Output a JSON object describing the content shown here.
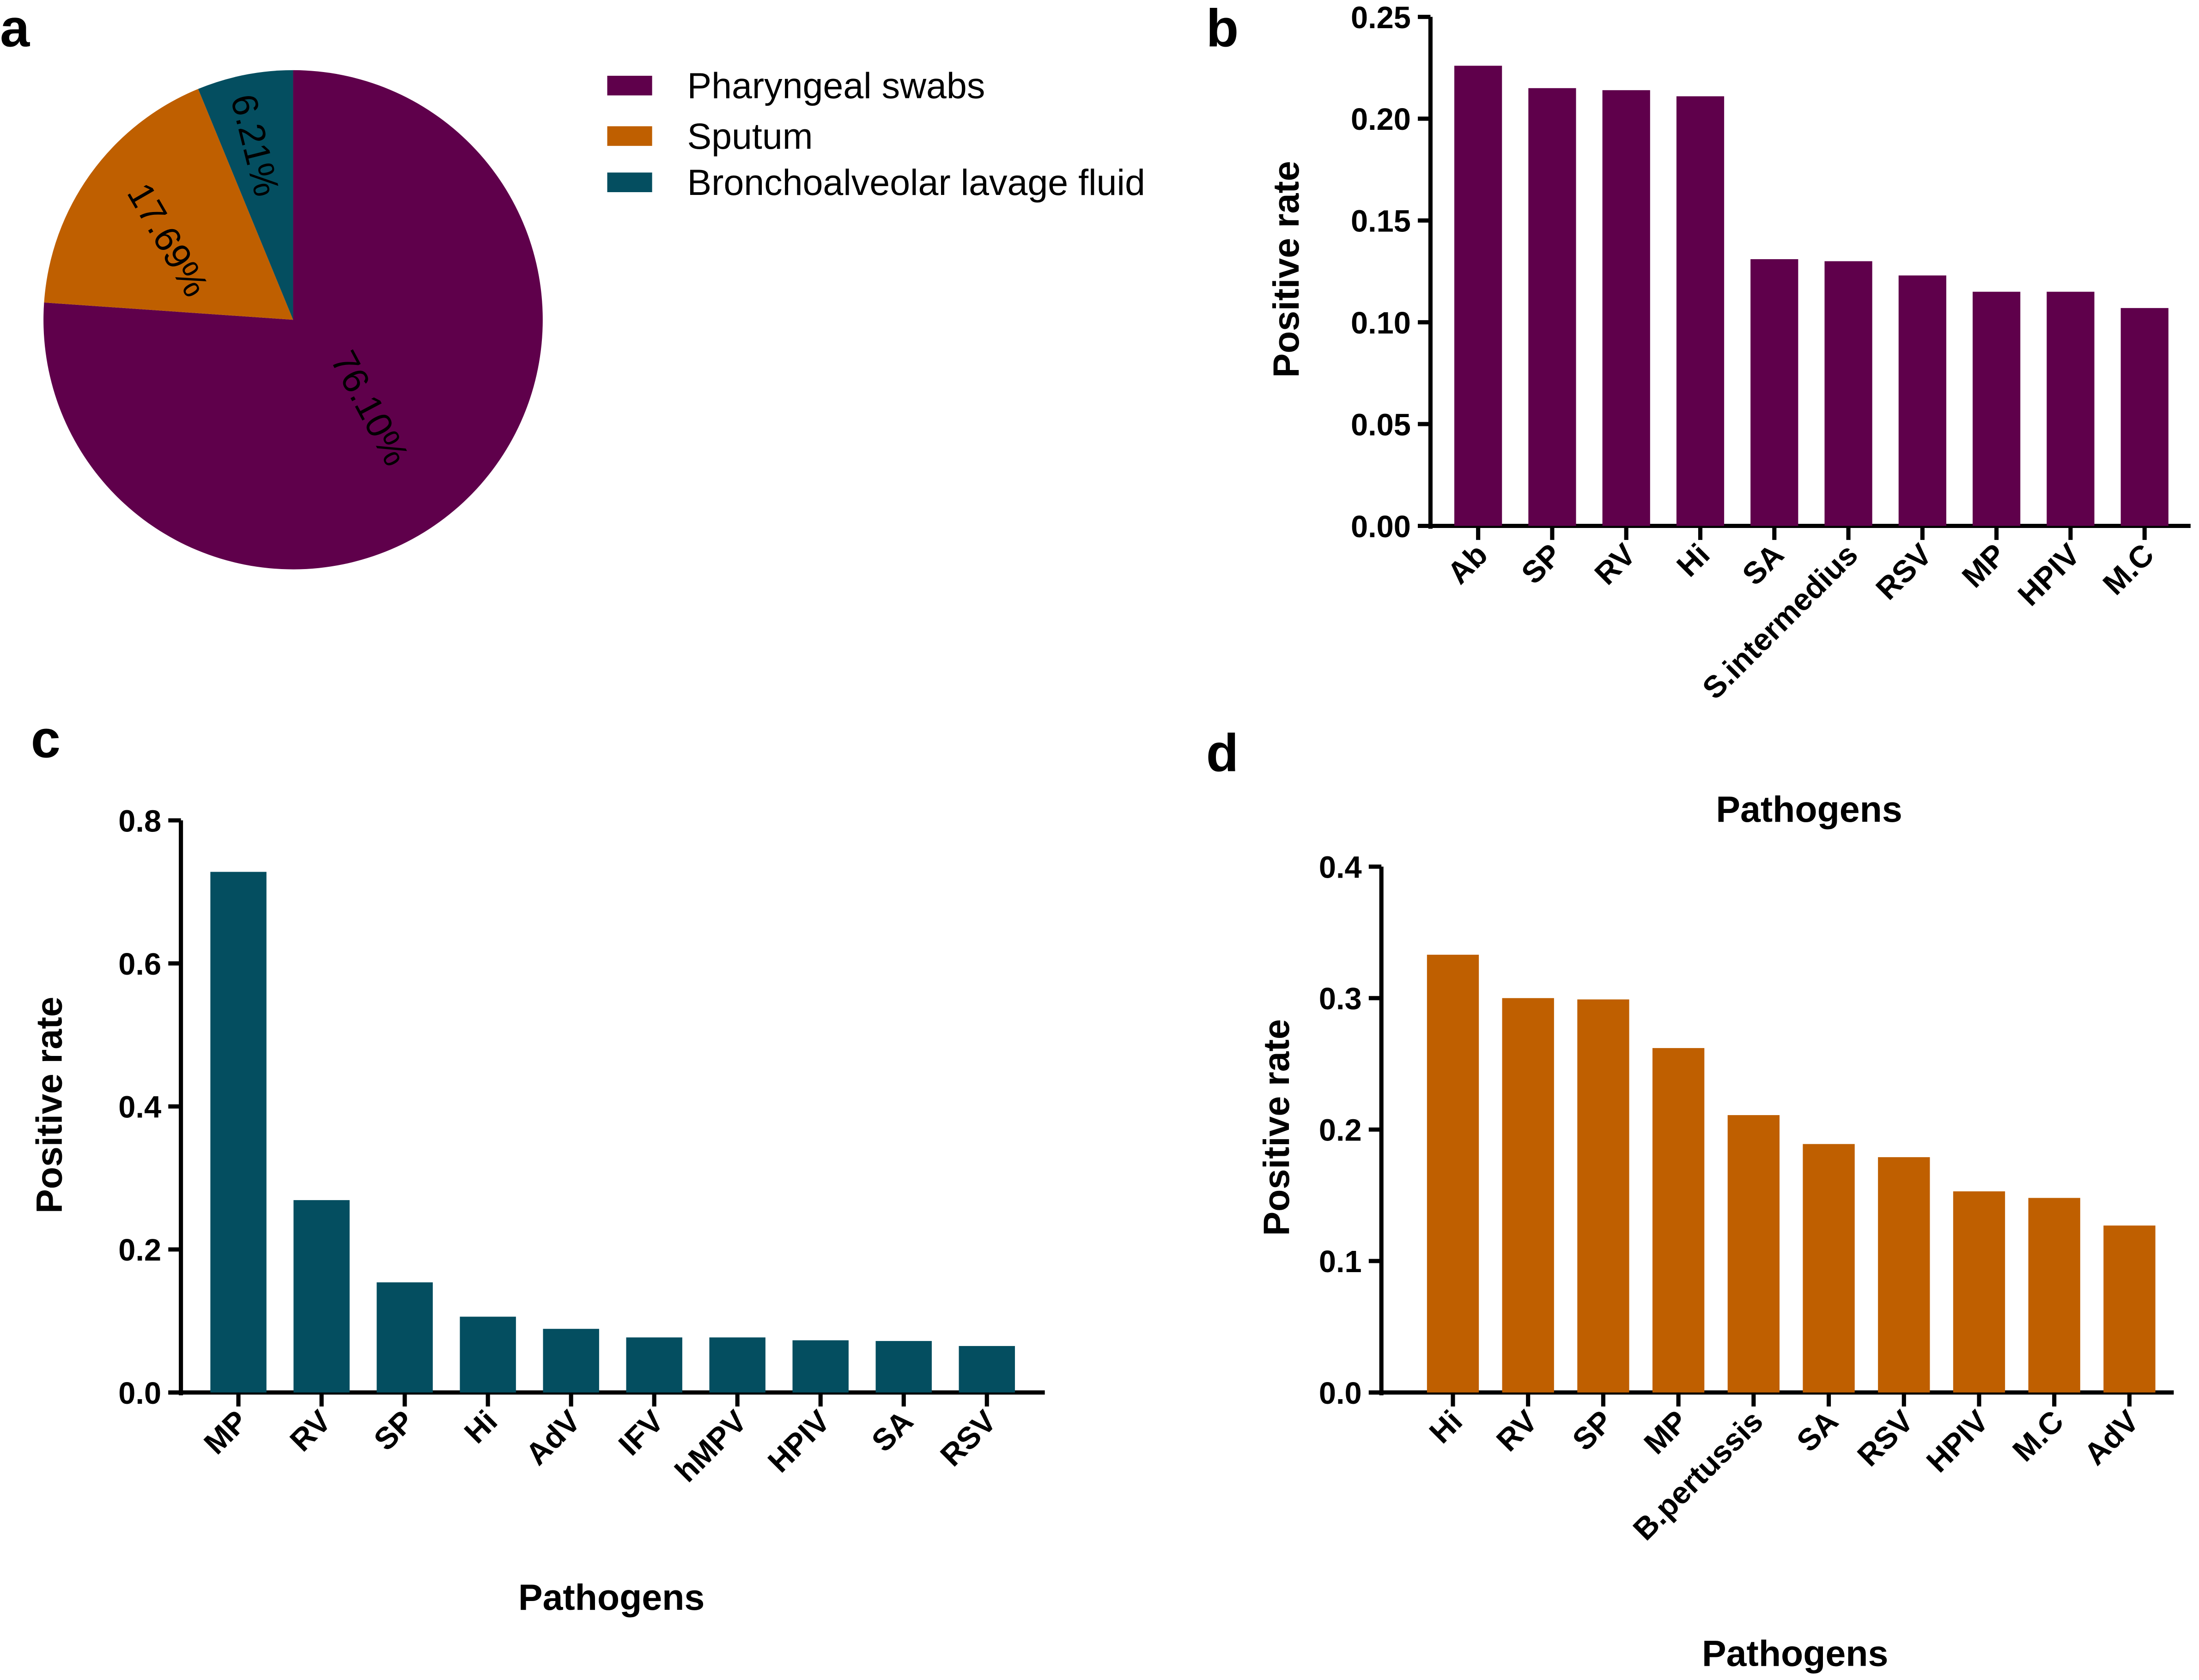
{
  "panels": {
    "a": "a",
    "b": "b",
    "c": "c",
    "d": "d"
  },
  "chart_data": [
    {
      "id": "a",
      "type": "pie",
      "labels": [
        "Pharyngeal swabs",
        "Sputum",
        "Bronchoalveolar lavage fluid"
      ],
      "values": [
        76.1,
        17.69,
        6.21
      ],
      "value_labels": [
        "76.10%",
        "17.69%",
        "6.21%"
      ],
      "colors": [
        "#5f004b",
        "#bf5f00",
        "#044e60"
      ],
      "legend": "top-right"
    },
    {
      "id": "b",
      "type": "bar",
      "categories": [
        "Ab",
        "SP",
        "RV",
        "Hi",
        "SA",
        "S.intermedius",
        "RSV",
        "MP",
        "HPIV",
        "M.C"
      ],
      "values": [
        0.226,
        0.215,
        0.214,
        0.211,
        0.131,
        0.13,
        0.123,
        0.115,
        0.115,
        0.107
      ],
      "xlabel": "Pathogens",
      "ylabel": "Positive rate",
      "ylim": [
        0,
        0.25
      ],
      "yticks": [
        "0.00",
        "0.05",
        "0.10",
        "0.15",
        "0.20",
        "0.25"
      ],
      "color": "#5f004b",
      "grid": false
    },
    {
      "id": "c",
      "type": "bar",
      "categories": [
        "MP",
        "RV",
        "SP",
        "Hi",
        "AdV",
        "IFV",
        "hMPV",
        "HPIV",
        "SA",
        "RSV"
      ],
      "values": [
        0.728,
        0.269,
        0.154,
        0.106,
        0.089,
        0.077,
        0.077,
        0.073,
        0.072,
        0.065
      ],
      "xlabel": "Pathogens",
      "ylabel": "Positive rate",
      "ylim": [
        0,
        0.8
      ],
      "yticks": [
        "0.0",
        "0.2",
        "0.4",
        "0.6",
        "0.8"
      ],
      "color": "#044e60",
      "grid": false
    },
    {
      "id": "d",
      "type": "bar",
      "categories": [
        "Hi",
        "RV",
        "SP",
        "MP",
        "B.pertussis",
        "SA",
        "RSV",
        "HPIV",
        "M.C",
        "AdV"
      ],
      "values": [
        0.333,
        0.3,
        0.299,
        0.262,
        0.211,
        0.189,
        0.179,
        0.153,
        0.148,
        0.127
      ],
      "xlabel": "Pathogens",
      "ylabel": "Positive rate",
      "ylim": [
        0,
        0.4
      ],
      "yticks": [
        "0.0",
        "0.1",
        "0.2",
        "0.3",
        "0.4"
      ],
      "color": "#bf5f00",
      "grid": false
    }
  ]
}
